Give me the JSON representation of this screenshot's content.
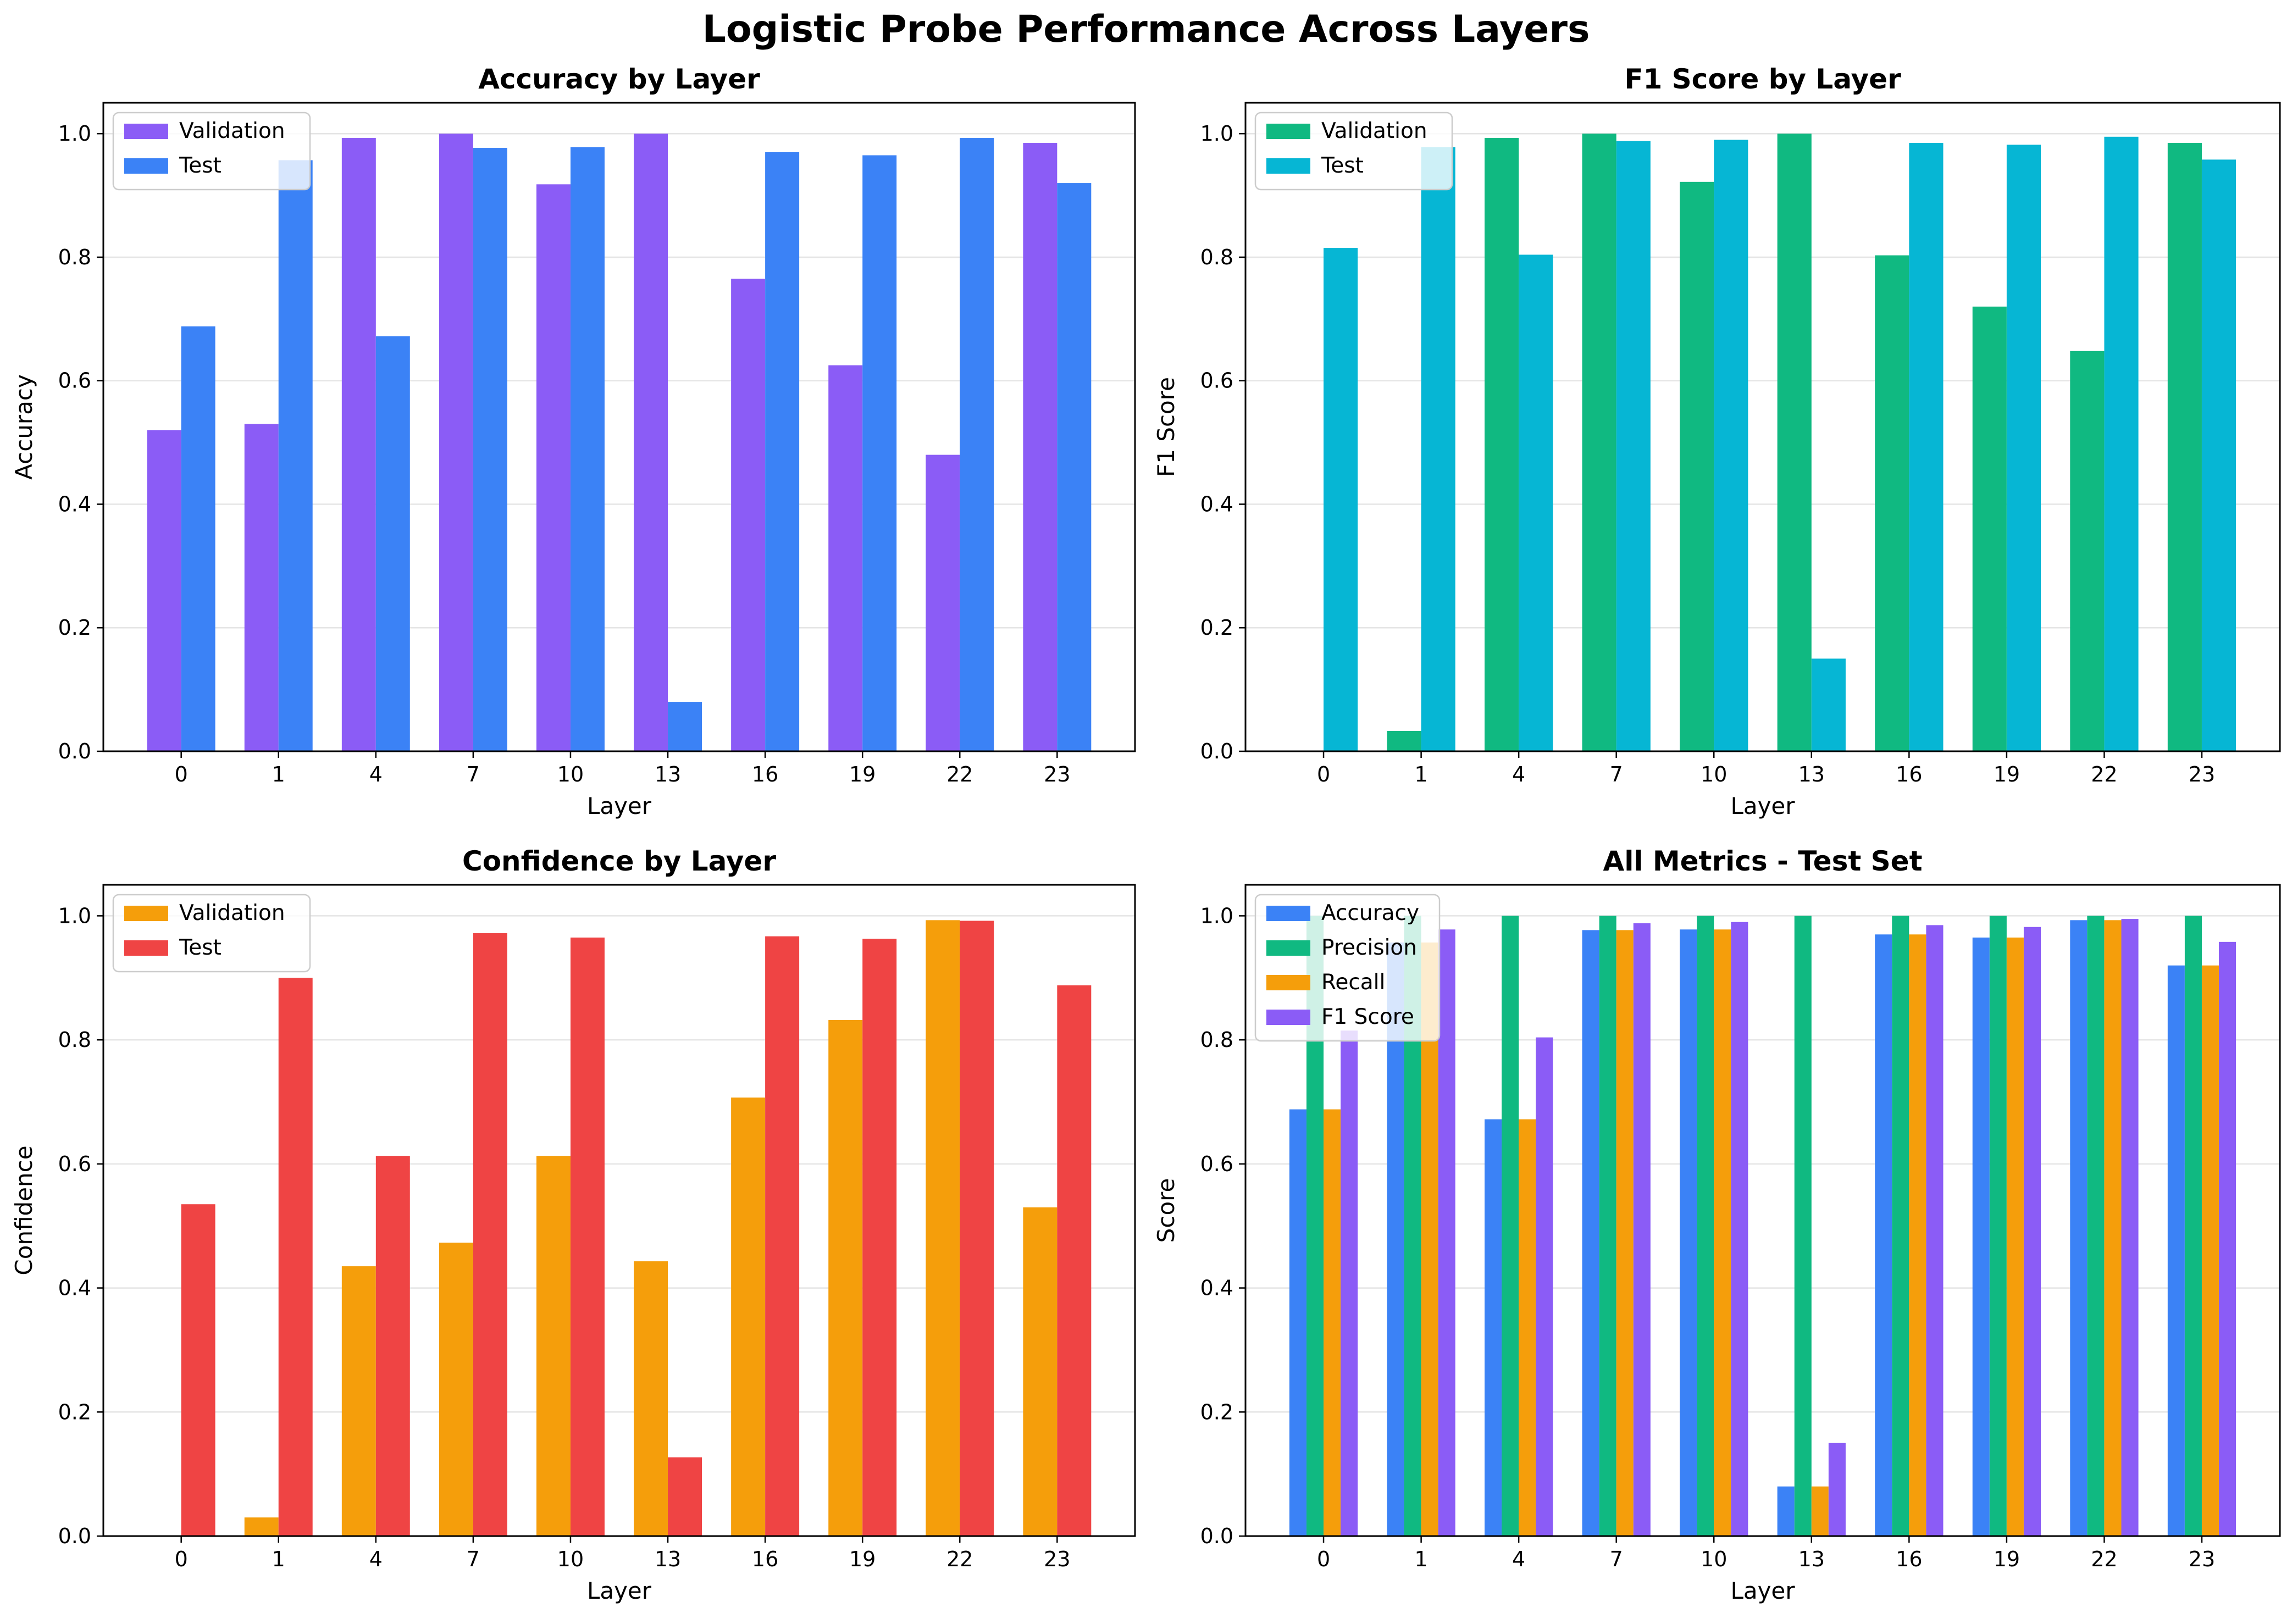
{
  "suptitle": "Logistic Probe Performance Across Layers",
  "chart_data": [
    {
      "type": "bar",
      "title": "Accuracy by Layer",
      "xlabel": "Layer",
      "ylabel": "Accuracy",
      "categories": [
        "0",
        "1",
        "4",
        "7",
        "10",
        "13",
        "16",
        "19",
        "22",
        "23"
      ],
      "ylim": [
        0,
        1.05
      ],
      "yticks": [
        "0.0",
        "0.2",
        "0.4",
        "0.6",
        "0.8",
        "1.0"
      ],
      "grid": "y",
      "legend": "upper-left",
      "series": [
        {
          "name": "Validation",
          "color": "#8b5cf6",
          "values": [
            0.52,
            0.53,
            0.993,
            1.0,
            0.918,
            1.0,
            0.765,
            0.625,
            0.48,
            0.985
          ]
        },
        {
          "name": "Test",
          "color": "#3b82f6",
          "values": [
            0.688,
            0.957,
            0.672,
            0.977,
            0.978,
            0.08,
            0.97,
            0.965,
            0.993,
            0.92
          ]
        }
      ]
    },
    {
      "type": "bar",
      "title": "F1 Score by Layer",
      "xlabel": "Layer",
      "ylabel": "F1 Score",
      "categories": [
        "0",
        "1",
        "4",
        "7",
        "10",
        "13",
        "16",
        "19",
        "22",
        "23"
      ],
      "ylim": [
        0,
        1.05
      ],
      "yticks": [
        "0.0",
        "0.2",
        "0.4",
        "0.6",
        "0.8",
        "1.0"
      ],
      "grid": "y",
      "legend": "upper-left",
      "series": [
        {
          "name": "Validation",
          "color": "#10b981",
          "values": [
            0.0,
            0.033,
            0.993,
            1.0,
            0.922,
            1.0,
            0.803,
            0.72,
            0.648,
            0.985
          ]
        },
        {
          "name": "Test",
          "color": "#06b6d4",
          "values": [
            0.815,
            0.978,
            0.804,
            0.988,
            0.99,
            0.15,
            0.985,
            0.982,
            0.995,
            0.958
          ]
        }
      ]
    },
    {
      "type": "bar",
      "title": "Confidence by Layer",
      "xlabel": "Layer",
      "ylabel": "Confidence",
      "categories": [
        "0",
        "1",
        "4",
        "7",
        "10",
        "13",
        "16",
        "19",
        "22",
        "23"
      ],
      "ylim": [
        0,
        1.05
      ],
      "yticks": [
        "0.0",
        "0.2",
        "0.4",
        "0.6",
        "0.8",
        "1.0"
      ],
      "grid": "y",
      "legend": "upper-left",
      "series": [
        {
          "name": "Validation",
          "color": "#f59e0b",
          "values": [
            0.0,
            0.03,
            0.435,
            0.473,
            0.613,
            0.443,
            0.707,
            0.832,
            0.993,
            0.53
          ]
        },
        {
          "name": "Test",
          "color": "#ef4444",
          "values": [
            0.535,
            0.9,
            0.613,
            0.972,
            0.965,
            0.127,
            0.967,
            0.963,
            0.992,
            0.888
          ]
        }
      ]
    },
    {
      "type": "bar",
      "title": "All Metrics - Test Set",
      "xlabel": "Layer",
      "ylabel": "Score",
      "categories": [
        "0",
        "1",
        "4",
        "7",
        "10",
        "13",
        "16",
        "19",
        "22",
        "23"
      ],
      "ylim": [
        0,
        1.05
      ],
      "yticks": [
        "0.0",
        "0.2",
        "0.4",
        "0.6",
        "0.8",
        "1.0"
      ],
      "grid": "y",
      "legend": "upper-left",
      "series": [
        {
          "name": "Accuracy",
          "color": "#3b82f6",
          "values": [
            0.688,
            0.957,
            0.672,
            0.977,
            0.978,
            0.08,
            0.97,
            0.965,
            0.993,
            0.92
          ]
        },
        {
          "name": "Precision",
          "color": "#10b981",
          "values": [
            1.0,
            1.0,
            1.0,
            1.0,
            1.0,
            1.0,
            1.0,
            1.0,
            1.0,
            1.0
          ]
        },
        {
          "name": "Recall",
          "color": "#f59e0b",
          "values": [
            0.688,
            0.957,
            0.672,
            0.977,
            0.978,
            0.08,
            0.97,
            0.965,
            0.993,
            0.92
          ]
        },
        {
          "name": "F1 Score",
          "color": "#8b5cf6",
          "values": [
            0.815,
            0.978,
            0.804,
            0.988,
            0.99,
            0.15,
            0.985,
            0.982,
            0.995,
            0.958
          ]
        }
      ]
    }
  ]
}
